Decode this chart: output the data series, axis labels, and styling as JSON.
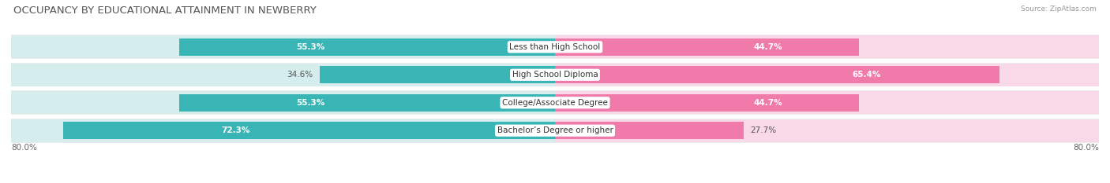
{
  "title": "OCCUPANCY BY EDUCATIONAL ATTAINMENT IN NEWBERRY",
  "source": "Source: ZipAtlas.com",
  "categories": [
    "Less than High School",
    "High School Diploma",
    "College/Associate Degree",
    "Bachelor’s Degree or higher"
  ],
  "owner_pct": [
    55.3,
    34.6,
    55.3,
    72.3
  ],
  "renter_pct": [
    44.7,
    65.4,
    44.7,
    27.7
  ],
  "owner_color": "#3ab5b5",
  "renter_color": "#f07aaa",
  "owner_bg_color": "#d5eded",
  "renter_bg_color": "#f9d8e8",
  "row_bg_color": "#ebebeb",
  "title_fontsize": 9.5,
  "label_fontsize": 7.5,
  "pct_fontsize": 7.5,
  "source_fontsize": 6.5,
  "tick_fontsize": 7.5
}
